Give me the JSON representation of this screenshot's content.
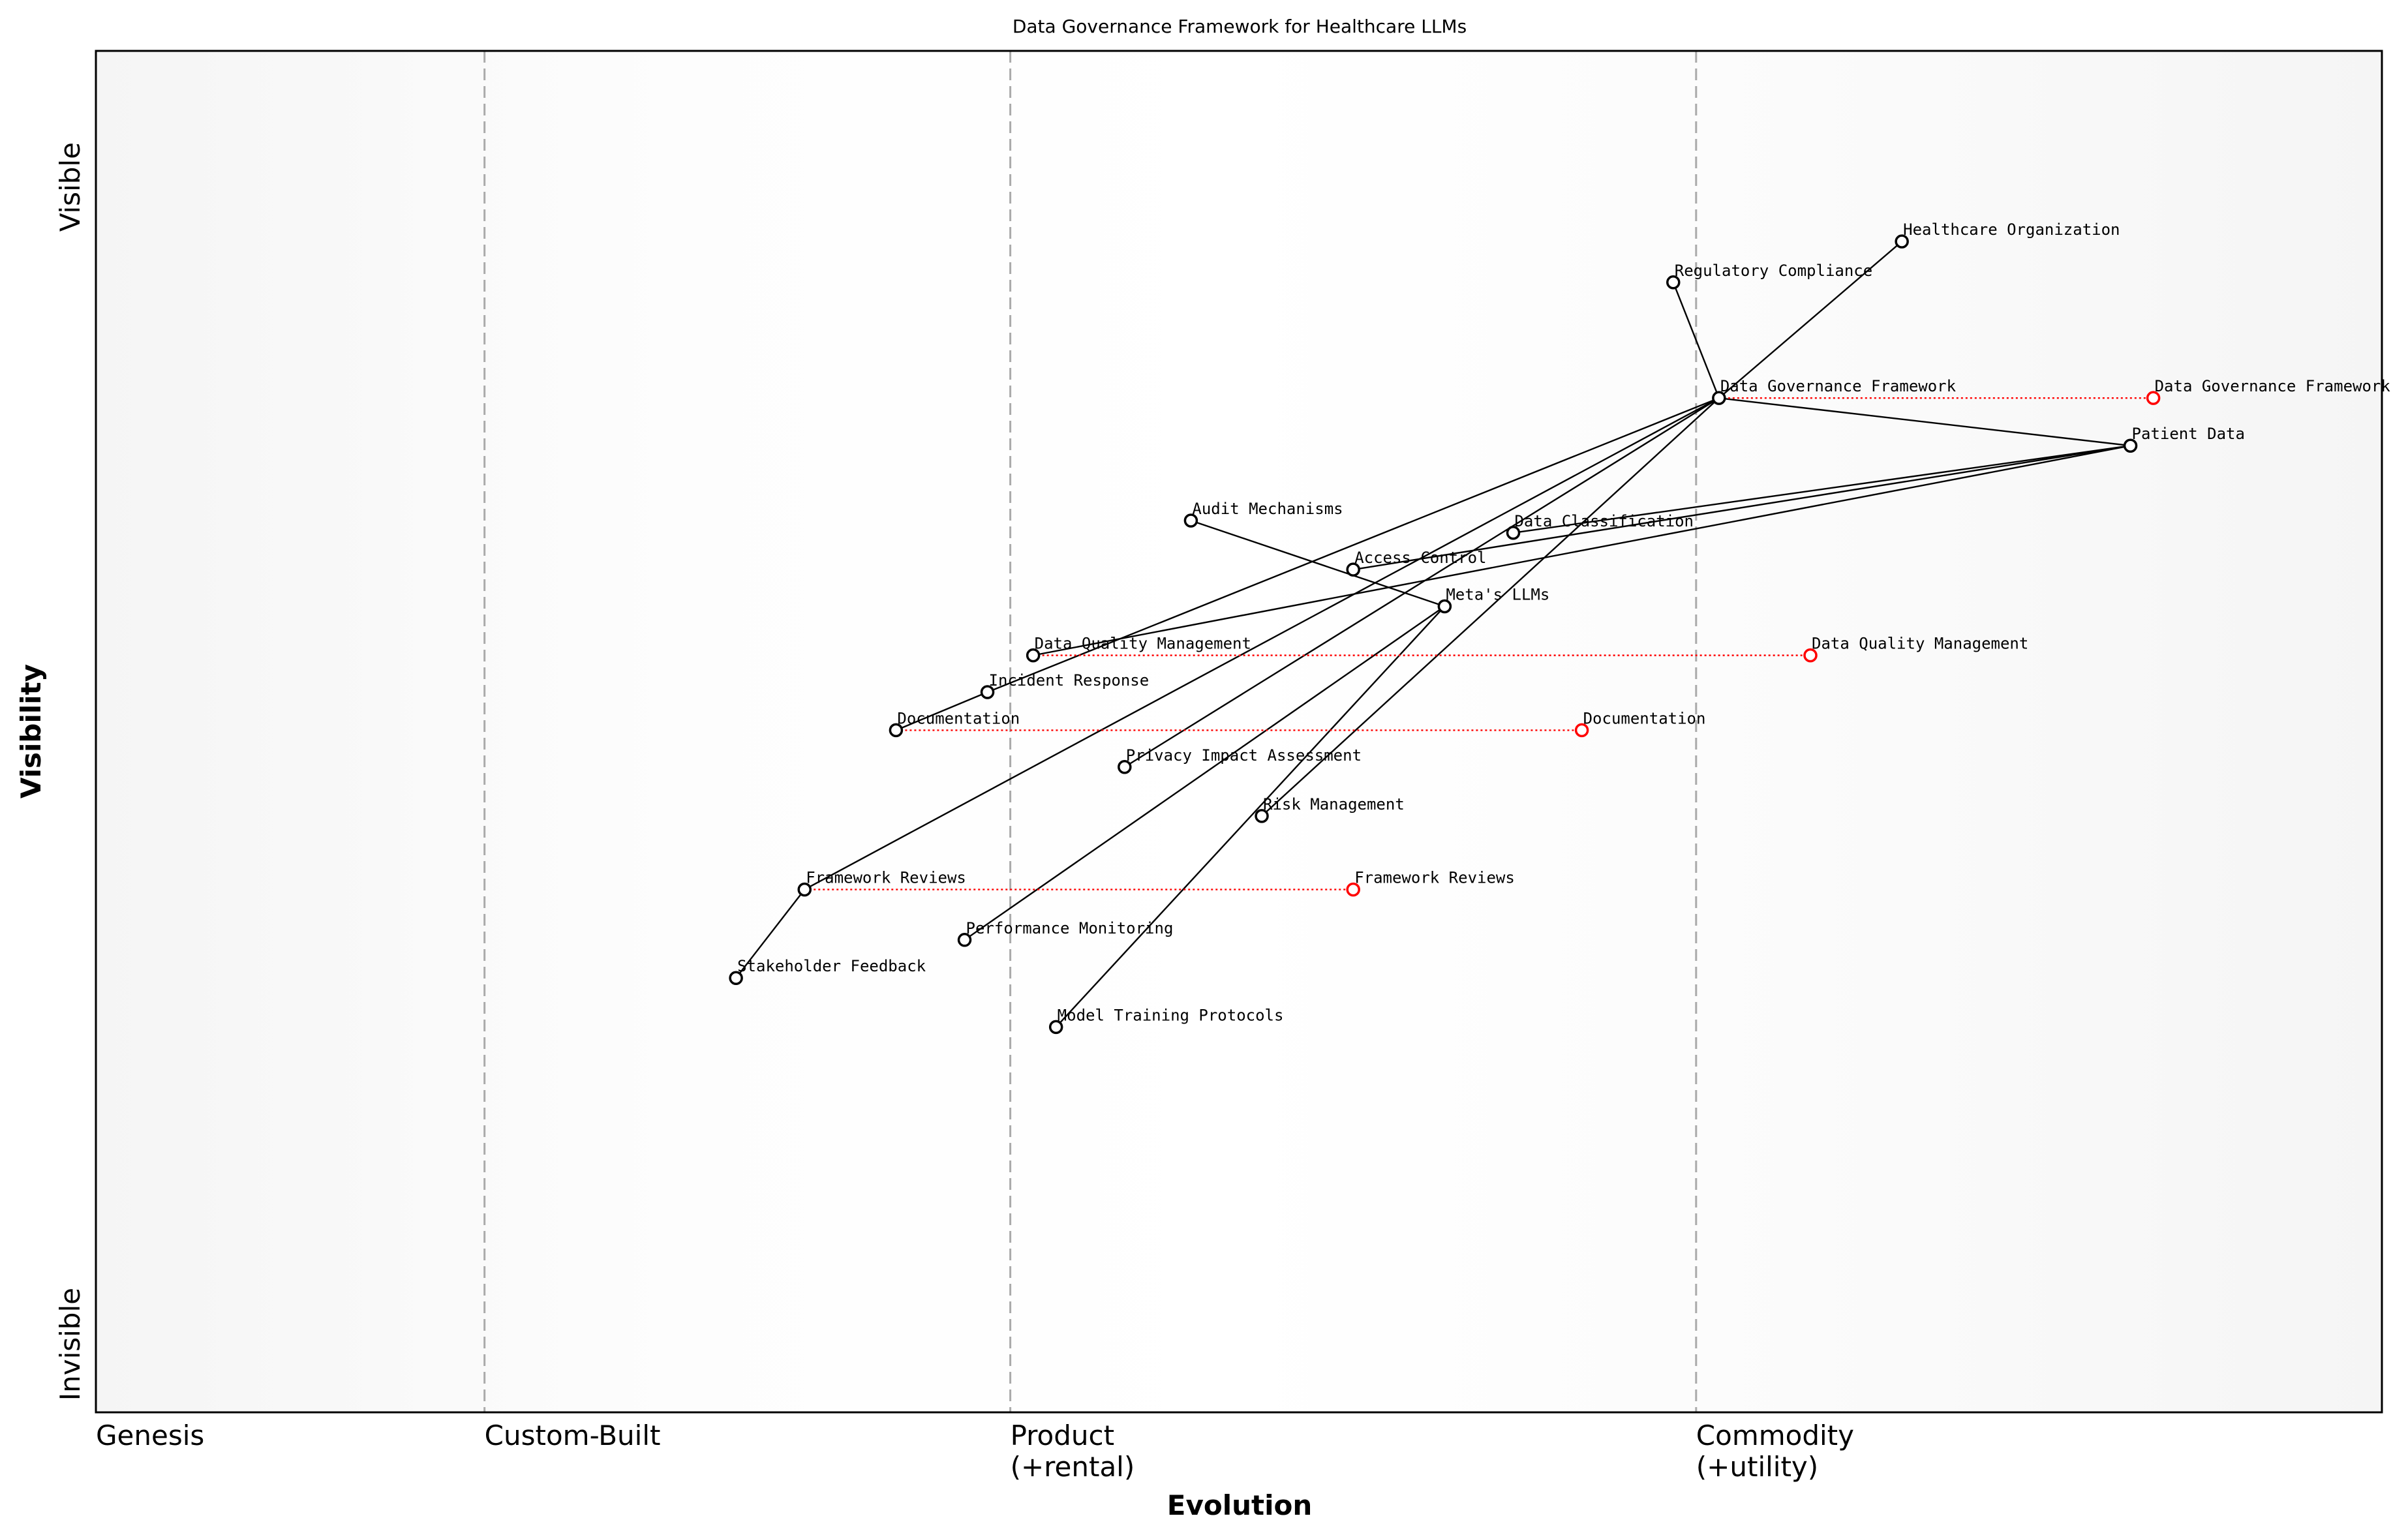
{
  "chart_data": {
    "type": "scatter",
    "subtype": "wardley-map",
    "title": "Data Governance Framework for Healthcare LLMs",
    "xlabel": "Evolution",
    "ylabel": "Visibility",
    "xlim": [
      0,
      1
    ],
    "ylim": [
      0,
      1
    ],
    "grid": false,
    "x_stages": [
      {
        "label": "Genesis",
        "x": 0.0,
        "line": false
      },
      {
        "label": "Custom-Built",
        "x": 0.17,
        "line": true
      },
      {
        "label": "Product",
        "sub": "(+rental)",
        "x": 0.4,
        "line": true
      },
      {
        "label": "Commodity",
        "sub": "(+utility)",
        "x": 0.7,
        "line": true
      }
    ],
    "y_ticks": [
      {
        "label": "Visible",
        "y": 0.9
      },
      {
        "label": "Invisible",
        "y": 0.05
      }
    ],
    "colors": {
      "component": "#000000",
      "evolved": "#ff0000",
      "stage_line": "#aaaaaa",
      "edge_bg": "#f5f5f5"
    },
    "components": [
      {
        "name": "Healthcare Organization",
        "x": 0.79,
        "y": 0.86
      },
      {
        "name": "Regulatory Compliance",
        "x": 0.69,
        "y": 0.83
      },
      {
        "name": "Data Governance Framework",
        "x": 0.71,
        "y": 0.745
      },
      {
        "name": "Patient Data",
        "x": 0.89,
        "y": 0.71
      },
      {
        "name": "Audit Mechanisms",
        "x": 0.479,
        "y": 0.655
      },
      {
        "name": "Data Classification",
        "x": 0.62,
        "y": 0.646
      },
      {
        "name": "Access Control",
        "x": 0.55,
        "y": 0.619
      },
      {
        "name": "Meta's LLMs",
        "x": 0.59,
        "y": 0.592
      },
      {
        "name": "Data Quality Management",
        "x": 0.41,
        "y": 0.556
      },
      {
        "name": "Incident Response",
        "x": 0.39,
        "y": 0.529
      },
      {
        "name": "Documentation",
        "x": 0.35,
        "y": 0.501
      },
      {
        "name": "Privacy Impact Assessment",
        "x": 0.45,
        "y": 0.474
      },
      {
        "name": "Risk Management",
        "x": 0.51,
        "y": 0.438
      },
      {
        "name": "Framework Reviews",
        "x": 0.31,
        "y": 0.384
      },
      {
        "name": "Performance Monitoring",
        "x": 0.38,
        "y": 0.347
      },
      {
        "name": "Stakeholder Feedback",
        "x": 0.28,
        "y": 0.319
      },
      {
        "name": "Model Training Protocols",
        "x": 0.42,
        "y": 0.283
      }
    ],
    "evolved": [
      {
        "name": "Data Governance Framework",
        "from_x": 0.71,
        "x": 0.9,
        "y": 0.745
      },
      {
        "name": "Data Quality Management",
        "from_x": 0.41,
        "x": 0.75,
        "y": 0.556
      },
      {
        "name": "Documentation",
        "from_x": 0.35,
        "x": 0.65,
        "y": 0.501
      },
      {
        "name": "Framework Reviews",
        "from_x": 0.31,
        "x": 0.55,
        "y": 0.384
      }
    ],
    "links": [
      [
        "Healthcare Organization",
        "Data Governance Framework"
      ],
      [
        "Regulatory Compliance",
        "Data Governance Framework"
      ],
      [
        "Data Governance Framework",
        "Patient Data"
      ],
      [
        "Data Governance Framework",
        "Incident Response"
      ],
      [
        "Data Governance Framework",
        "Framework Reviews"
      ],
      [
        "Data Governance Framework",
        "Privacy Impact Assessment"
      ],
      [
        "Data Governance Framework",
        "Risk Management"
      ],
      [
        "Patient Data",
        "Data Quality Management"
      ],
      [
        "Patient Data",
        "Access Control"
      ],
      [
        "Patient Data",
        "Data Classification"
      ],
      [
        "Audit Mechanisms",
        "Meta's LLMs"
      ],
      [
        "Meta's LLMs",
        "Performance Monitoring"
      ],
      [
        "Meta's LLMs",
        "Model Training Protocols"
      ],
      [
        "Incident Response",
        "Documentation"
      ],
      [
        "Framework Reviews",
        "Stakeholder Feedback"
      ]
    ]
  }
}
